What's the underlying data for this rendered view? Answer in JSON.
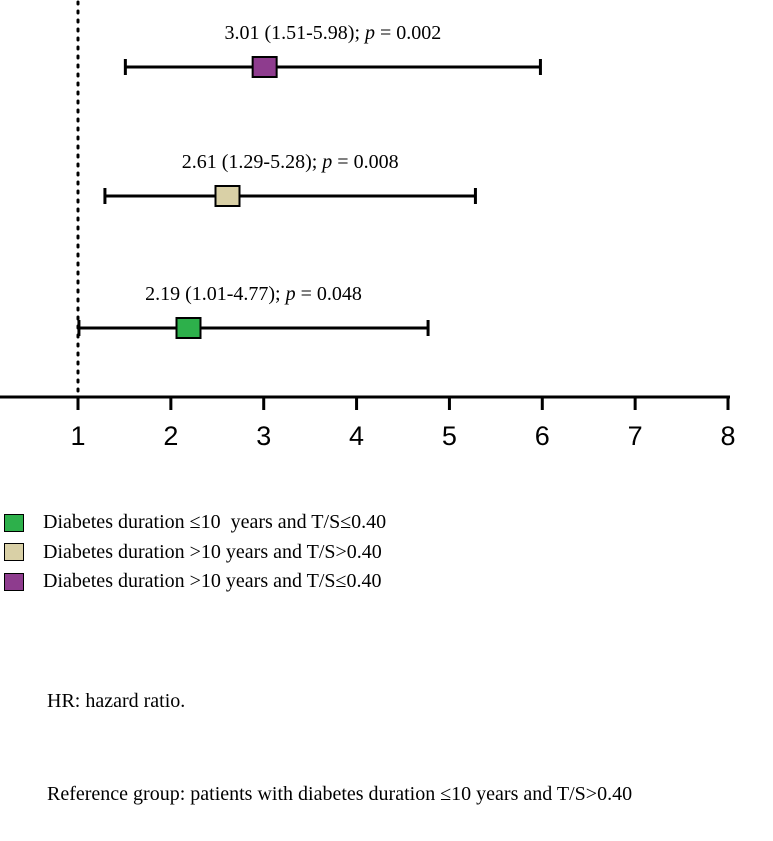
{
  "chart_data": {
    "type": "forest",
    "reference_line": 1,
    "xlim": [
      1,
      8
    ],
    "x_ticks": [
      "1",
      "2",
      "3",
      "4",
      "5",
      "6",
      "7",
      "8"
    ],
    "rows": [
      {
        "estimate": 3.01,
        "lower": 1.51,
        "upper": 5.98,
        "color": "#8e3c8e",
        "label_pre": "3.01 (1.51-5.98); ",
        "label_p": "p",
        "label_post": " = 0.002"
      },
      {
        "estimate": 2.61,
        "lower": 1.29,
        "upper": 5.28,
        "color": "#d9d0a6",
        "label_pre": "2.61 (1.29-5.28); ",
        "label_p": "p",
        "label_post": " = 0.008"
      },
      {
        "estimate": 2.19,
        "lower": 1.01,
        "upper": 4.77,
        "color": "#2db04b",
        "label_pre": "2.19 (1.01-4.77); ",
        "label_p": "p",
        "label_post": " = 0.048"
      }
    ]
  },
  "legend": [
    {
      "label": "Diabetes duration ≤10  years and T/S≤0.40",
      "color": "#2db04b"
    },
    {
      "label": "Diabetes duration >10 years and T/S>0.40",
      "color": "#d9d0a6"
    },
    {
      "label": "Diabetes duration >10 years and T/S≤0.40",
      "color": "#8e3c8e"
    }
  ],
  "notes": {
    "line1": "HR: hazard ratio.",
    "line2": "Reference group: patients with diabetes duration ≤10 years and T/S>0.40"
  }
}
